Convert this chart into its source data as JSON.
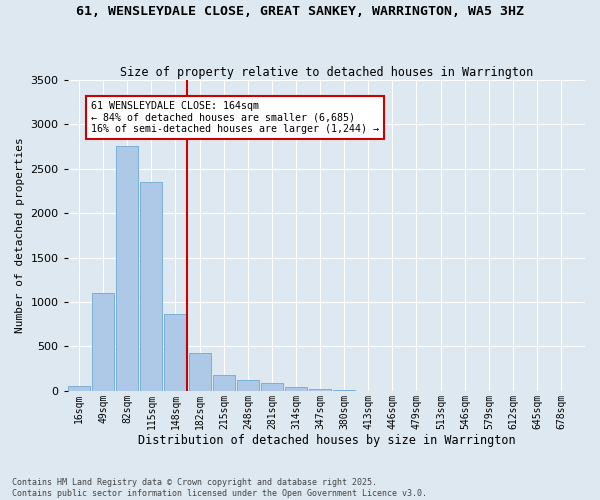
{
  "title": "61, WENSLEYDALE CLOSE, GREAT SANKEY, WARRINGTON, WA5 3HZ",
  "subtitle": "Size of property relative to detached houses in Warrington",
  "xlabel": "Distribution of detached houses by size in Warrington",
  "ylabel": "Number of detached properties",
  "footer_line1": "Contains HM Land Registry data © Crown copyright and database right 2025.",
  "footer_line2": "Contains public sector information licensed under the Open Government Licence v3.0.",
  "annotation_line1": "61 WENSLEYDALE CLOSE: 164sqm",
  "annotation_line2": "← 84% of detached houses are smaller (6,685)",
  "annotation_line3": "16% of semi-detached houses are larger (1,244) →",
  "marker_value": 164,
  "bar_color": "#aec9e8",
  "bar_edge_color": "#7aafd4",
  "marker_color": "#cc0000",
  "background_color": "#dde8f0",
  "annotation_box_color": "#ffffff",
  "annotation_box_edge": "#cc0000",
  "categories": [
    "16sqm",
    "49sqm",
    "82sqm",
    "115sqm",
    "148sqm",
    "182sqm",
    "215sqm",
    "248sqm",
    "281sqm",
    "314sqm",
    "347sqm",
    "380sqm",
    "413sqm",
    "446sqm",
    "479sqm",
    "513sqm",
    "546sqm",
    "579sqm",
    "612sqm",
    "645sqm",
    "678sqm"
  ],
  "bin_centers": [
    16,
    49,
    82,
    115,
    148,
    182,
    215,
    248,
    281,
    314,
    347,
    380,
    413,
    446,
    479,
    513,
    546,
    579,
    612,
    645,
    678
  ],
  "values": [
    55,
    1100,
    2750,
    2350,
    870,
    430,
    175,
    120,
    85,
    45,
    18,
    8,
    4,
    2,
    1,
    0,
    0,
    0,
    0,
    0,
    0
  ],
  "ylim": [
    0,
    3500
  ],
  "yticks": [
    0,
    500,
    1000,
    1500,
    2000,
    2500,
    3000,
    3500
  ]
}
